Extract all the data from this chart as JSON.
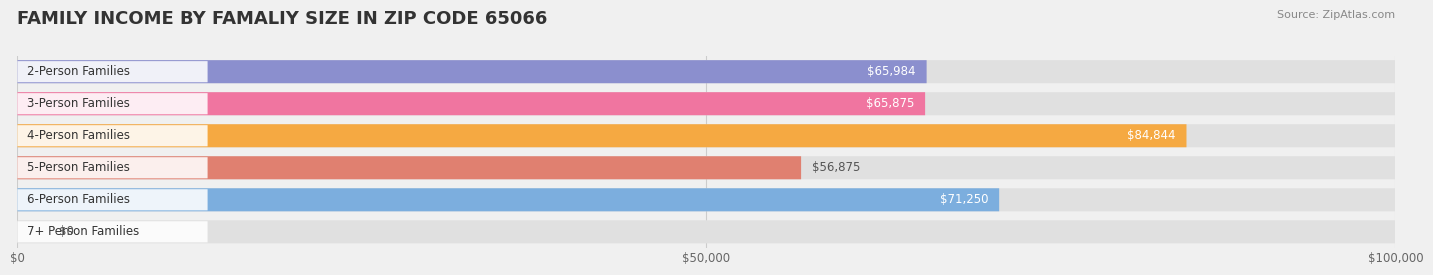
{
  "title": "FAMILY INCOME BY FAMALIY SIZE IN ZIP CODE 65066",
  "source": "Source: ZipAtlas.com",
  "categories": [
    "2-Person Families",
    "3-Person Families",
    "4-Person Families",
    "5-Person Families",
    "6-Person Families",
    "7+ Person Families"
  ],
  "values": [
    65984,
    65875,
    84844,
    56875,
    71250,
    0
  ],
  "bar_colors": [
    "#8b8fce",
    "#f075a0",
    "#f5a942",
    "#e08070",
    "#7caede",
    "#c8b0d8"
  ],
  "label_colors": [
    "white",
    "white",
    "white",
    "black",
    "white",
    "black"
  ],
  "bg_color": "#f0f0f0",
  "bar_bg_color": "#e8e8e8",
  "xlim": [
    0,
    100000
  ],
  "xticks": [
    0,
    50000,
    100000
  ],
  "xtick_labels": [
    "$0",
    "$50,000",
    "$100,000"
  ],
  "title_fontsize": 13,
  "label_fontsize": 8.5,
  "value_fontsize": 8.5,
  "source_fontsize": 8
}
